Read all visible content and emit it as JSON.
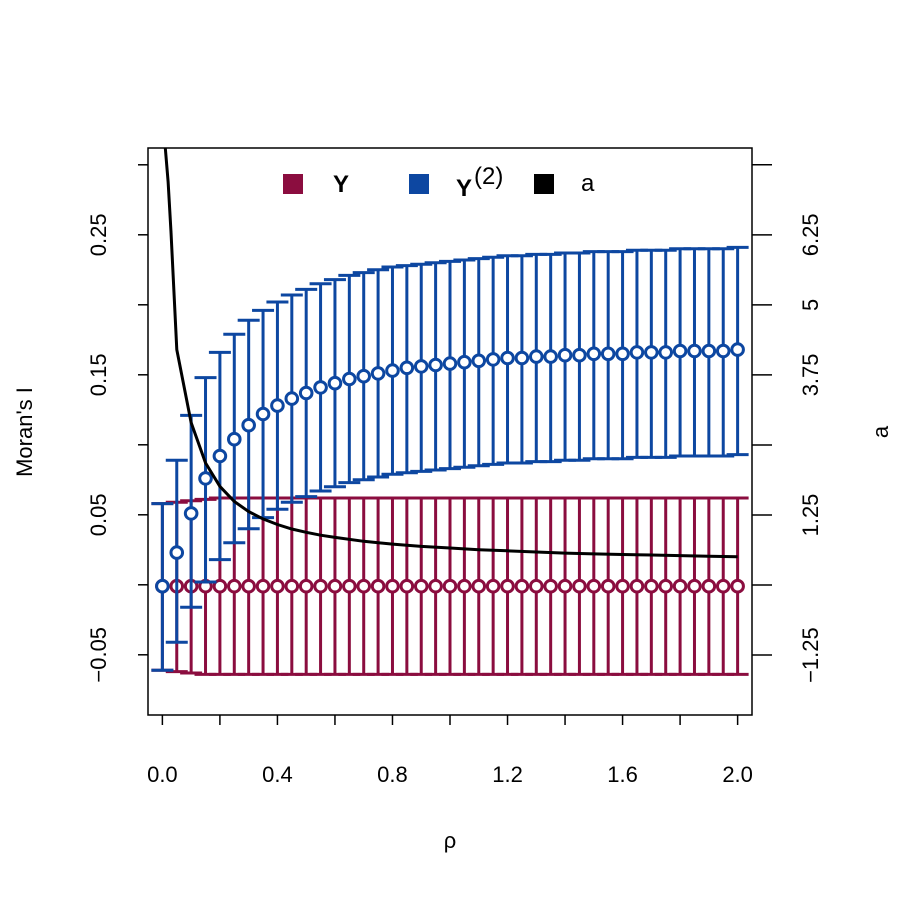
{
  "chart_data": {
    "type": "scatter",
    "xlabel": "ρ",
    "ylabel_left": "Moran's I",
    "ylabel_right": "a",
    "xlim": [
      -0.05,
      2.05
    ],
    "ylim_left": [
      -0.093,
      0.312
    ],
    "ylim_right": [
      -2.32,
      7.8
    ],
    "x_ticks": [
      "0.0",
      "0.4",
      "0.8",
      "1.2",
      "1.6",
      "2.0"
    ],
    "x_tick_values": [
      0.0,
      0.4,
      0.8,
      1.2,
      1.6,
      2.0
    ],
    "left_ticks": [
      "−0.05",
      "0.05",
      "0.15",
      "0.25"
    ],
    "left_tick_values": [
      -0.05,
      0.05,
      0.15,
      0.25
    ],
    "right_ticks": [
      "−1.25",
      "1.25",
      "3.75",
      "5",
      "6.25"
    ],
    "right_tick_values": [
      -1.25,
      1.25,
      3.75,
      5.0,
      6.25
    ],
    "x": [
      0.0,
      0.05,
      0.1,
      0.15,
      0.2,
      0.25,
      0.3,
      0.35,
      0.4,
      0.45,
      0.5,
      0.55,
      0.6,
      0.65,
      0.7,
      0.75,
      0.8,
      0.85,
      0.9,
      0.95,
      1.0,
      1.05,
      1.1,
      1.15,
      1.2,
      1.25,
      1.3,
      1.35,
      1.4,
      1.45,
      1.5,
      1.55,
      1.6,
      1.65,
      1.7,
      1.75,
      1.8,
      1.85,
      1.9,
      1.95,
      2.0
    ],
    "series": [
      {
        "name": "Y",
        "color": "#8B0D3F",
        "mean": [
          -0.001,
          -0.001,
          -0.001,
          -0.001,
          -0.001,
          -0.001,
          -0.001,
          -0.001,
          -0.001,
          -0.001,
          -0.001,
          -0.001,
          -0.001,
          -0.001,
          -0.001,
          -0.001,
          -0.001,
          -0.001,
          -0.001,
          -0.001,
          -0.001,
          -0.001,
          -0.001,
          -0.001,
          -0.001,
          -0.001,
          -0.001,
          -0.001,
          -0.001,
          -0.001,
          -0.001,
          -0.001,
          -0.001,
          -0.001,
          -0.001,
          -0.001,
          -0.001,
          -0.001,
          -0.001,
          -0.001,
          -0.001
        ],
        "lower": [
          -0.061,
          -0.062,
          -0.063,
          -0.064,
          -0.064,
          -0.064,
          -0.064,
          -0.064,
          -0.064,
          -0.064,
          -0.064,
          -0.064,
          -0.064,
          -0.064,
          -0.064,
          -0.064,
          -0.064,
          -0.064,
          -0.064,
          -0.064,
          -0.064,
          -0.064,
          -0.064,
          -0.064,
          -0.064,
          -0.064,
          -0.064,
          -0.064,
          -0.064,
          -0.064,
          -0.064,
          -0.064,
          -0.064,
          -0.064,
          -0.064,
          -0.064,
          -0.064,
          -0.064,
          -0.064,
          -0.064,
          -0.064
        ],
        "upper": [
          0.058,
          0.059,
          0.06,
          0.061,
          0.062,
          0.062,
          0.062,
          0.062,
          0.062,
          0.062,
          0.062,
          0.062,
          0.062,
          0.062,
          0.062,
          0.062,
          0.062,
          0.062,
          0.062,
          0.062,
          0.062,
          0.062,
          0.062,
          0.062,
          0.062,
          0.062,
          0.062,
          0.062,
          0.062,
          0.062,
          0.062,
          0.062,
          0.062,
          0.062,
          0.062,
          0.062,
          0.062,
          0.062,
          0.062,
          0.062,
          0.062
        ]
      },
      {
        "name": "Y",
        "superscript": "(2)",
        "color": "#0D47A1",
        "mean": [
          -0.001,
          0.023,
          0.051,
          0.076,
          0.092,
          0.104,
          0.114,
          0.122,
          0.128,
          0.133,
          0.137,
          0.141,
          0.144,
          0.147,
          0.149,
          0.151,
          0.153,
          0.155,
          0.156,
          0.157,
          0.158,
          0.159,
          0.16,
          0.161,
          0.162,
          0.162,
          0.163,
          0.163,
          0.164,
          0.164,
          0.165,
          0.165,
          0.165,
          0.166,
          0.166,
          0.166,
          0.167,
          0.167,
          0.167,
          0.167,
          0.168
        ],
        "lower": [
          -0.061,
          -0.041,
          -0.016,
          0.002,
          0.018,
          0.03,
          0.04,
          0.048,
          0.054,
          0.059,
          0.063,
          0.067,
          0.07,
          0.073,
          0.075,
          0.077,
          0.079,
          0.08,
          0.081,
          0.082,
          0.083,
          0.084,
          0.085,
          0.086,
          0.087,
          0.087,
          0.088,
          0.088,
          0.089,
          0.089,
          0.09,
          0.09,
          0.09,
          0.091,
          0.091,
          0.091,
          0.092,
          0.092,
          0.092,
          0.092,
          0.093
        ],
        "upper": [
          0.058,
          0.089,
          0.121,
          0.148,
          0.166,
          0.179,
          0.189,
          0.196,
          0.202,
          0.207,
          0.211,
          0.215,
          0.218,
          0.221,
          0.223,
          0.225,
          0.227,
          0.228,
          0.229,
          0.23,
          0.231,
          0.232,
          0.233,
          0.234,
          0.235,
          0.235,
          0.236,
          0.236,
          0.237,
          0.237,
          0.238,
          0.238,
          0.238,
          0.239,
          0.239,
          0.239,
          0.24,
          0.24,
          0.24,
          0.24,
          0.241
        ]
      },
      {
        "name": "a",
        "color": "#000000",
        "axis": "right",
        "x": [
          0.01,
          0.02,
          0.03,
          0.05,
          0.1,
          0.15,
          0.2,
          0.25,
          0.3,
          0.35,
          0.4,
          0.45,
          0.5,
          0.55,
          0.6,
          0.7,
          0.8,
          0.9,
          1.0,
          1.1,
          1.2,
          1.3,
          1.4,
          1.5,
          1.6,
          1.7,
          1.8,
          1.9,
          2.0
        ],
        "values": [
          7.8,
          7.2,
          6.3,
          4.2,
          2.9,
          2.18,
          1.76,
          1.49,
          1.31,
          1.18,
          1.08,
          1.0,
          0.94,
          0.89,
          0.85,
          0.78,
          0.73,
          0.69,
          0.66,
          0.63,
          0.61,
          0.59,
          0.57,
          0.555,
          0.545,
          0.535,
          0.525,
          0.515,
          0.505
        ]
      }
    ],
    "legend": {
      "placement": "top",
      "entries": [
        {
          "label": "Y",
          "superscript": "",
          "color": "#8B0D3F"
        },
        {
          "label": "Y",
          "superscript": "(2)",
          "color": "#0D47A1"
        },
        {
          "label": "a",
          "superscript": "",
          "color": "#000000"
        }
      ]
    },
    "grid": false
  }
}
